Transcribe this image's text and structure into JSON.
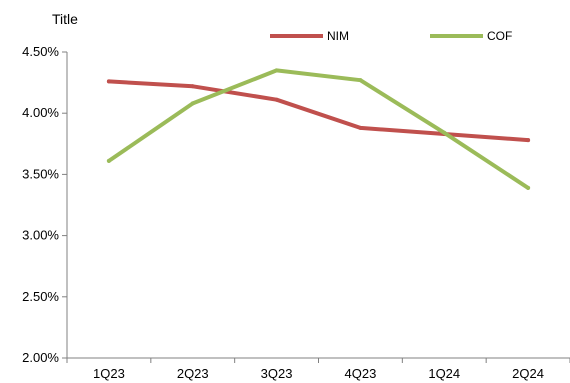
{
  "chart_data": {
    "type": "line",
    "title": "Title",
    "categories": [
      "1Q23",
      "2Q23",
      "3Q23",
      "4Q23",
      "1Q24",
      "2Q24"
    ],
    "ylim": [
      0.02,
      0.045
    ],
    "yticks": [
      0.02,
      0.025,
      0.03,
      0.035,
      0.04,
      0.045
    ],
    "ytick_labels": [
      "2.00%",
      "2.50%",
      "3.00%",
      "3.50%",
      "4.00%",
      "4.50%"
    ],
    "grid": false,
    "legend_position": "top-center",
    "series": [
      {
        "name": "NIM",
        "color": "#C0504D",
        "values": [
          0.0426,
          0.0422,
          0.0411,
          0.0388,
          0.0383,
          0.0378
        ]
      },
      {
        "name": "COF",
        "color": "#9BBB59",
        "values": [
          0.0361,
          0.0408,
          0.0435,
          0.0427,
          0.0384,
          0.0339
        ]
      }
    ]
  }
}
